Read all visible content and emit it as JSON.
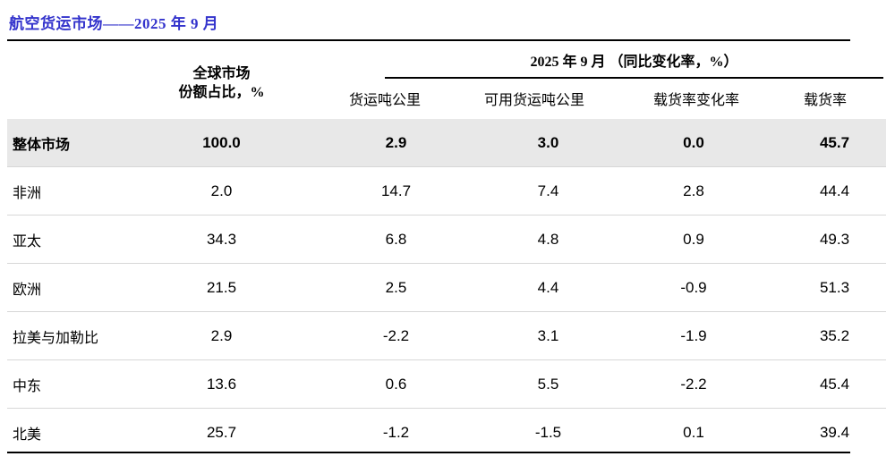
{
  "title": "航空货运市场——2025 年 9 月",
  "colors": {
    "title_blue": "#3333cc",
    "highlight_row_bg": "#e8e8e8",
    "row_separator": "#d7d7d7",
    "rule_black": "#000000"
  },
  "table": {
    "share_header_line1": "全球市场",
    "share_header_line2": "份额占比，%",
    "group_header": "2025 年 9 月 （同比变化率，%）",
    "columns": {
      "ctk": "货运吨公里",
      "actk": "可用货运吨公里",
      "lf_change": "载货率变化率",
      "lf": "载货率"
    },
    "rows": [
      {
        "region": "整体市场",
        "share": "100.0",
        "ctk": "2.9",
        "actk": "3.0",
        "lf_change": "0.0",
        "lf": "45.7"
      },
      {
        "region": "非洲",
        "share": "2.0",
        "ctk": "14.7",
        "actk": "7.4",
        "lf_change": "2.8",
        "lf": "44.4"
      },
      {
        "region": "亚太",
        "share": "34.3",
        "ctk": "6.8",
        "actk": "4.8",
        "lf_change": "0.9",
        "lf": "49.3"
      },
      {
        "region": "欧洲",
        "share": "21.5",
        "ctk": "2.5",
        "actk": "4.4",
        "lf_change": "-0.9",
        "lf": "51.3"
      },
      {
        "region": "拉美与加勒比",
        "share": "2.9",
        "ctk": "-2.2",
        "actk": "3.1",
        "lf_change": "-1.9",
        "lf": "35.2"
      },
      {
        "region": "中东",
        "share": "13.6",
        "ctk": "0.6",
        "actk": "5.5",
        "lf_change": "-2.2",
        "lf": "45.4"
      },
      {
        "region": "北美",
        "share": "25.7",
        "ctk": "-1.2",
        "actk": "-1.5",
        "lf_change": "0.1",
        "lf": "39.4"
      }
    ]
  }
}
